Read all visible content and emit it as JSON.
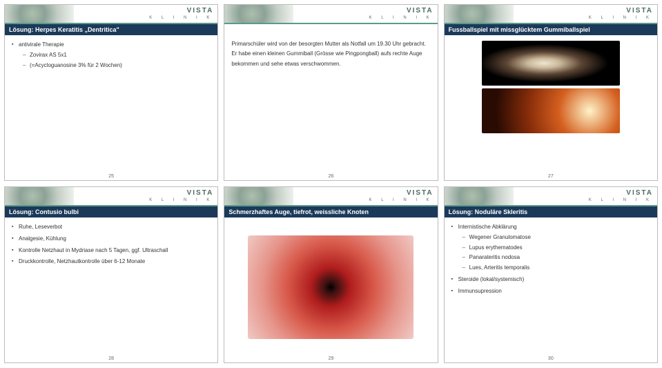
{
  "brand": {
    "main": "VISTA",
    "sub": "K L I N I K"
  },
  "slides": [
    {
      "number": "25",
      "title": "Lösung: Herpes Keratitis „Dentritica\"",
      "bullets": [
        {
          "text": "antivirale Therapie",
          "sub": [
            "Zovirax AS 5x1",
            "(=Acycloguanosine 3% für 2 Wochen)"
          ]
        }
      ]
    },
    {
      "number": "26",
      "title": "",
      "paragraph": "Primarschüler wird von der besorgten Mutter als Notfall um 19.30 Uhr gebracht. Er habe einen kleinen Gummiball (Grösse wie Pingpongball) aufs rechte Auge bekommen und sehe etwas verschwommen."
    },
    {
      "number": "27",
      "title": "Fussballspiel mit missglücktem Gummiballspiel"
    },
    {
      "number": "28",
      "title": "Lösung: Contusio bulbi",
      "bullets": [
        {
          "text": "Ruhe, Leseverbot",
          "sub": []
        },
        {
          "text": "Analgesie, Kühlung",
          "sub": []
        },
        {
          "text": "Kontrolle Netzhaut in Mydriase nach 5 Tagen, ggf. Ultraschall",
          "sub": []
        },
        {
          "text": "Druckkontrolle, Netzhautkontrolle über 6-12 Monate",
          "sub": []
        }
      ]
    },
    {
      "number": "29",
      "title": "Schmerzhaftes Auge, tiefrot, weissliche Knoten"
    },
    {
      "number": "30",
      "title": "Lösung: Noduläre Skleritis",
      "bullets": [
        {
          "text": "Internistische Abklärung",
          "sub": [
            "Wegener Granulomatose",
            "Lupus erythematodes",
            "Panarateritis nodosa",
            "Lues, Arteritis temporalis"
          ]
        },
        {
          "text": "Steroide (lokal/systemisch)",
          "sub": []
        },
        {
          "text": "Immunsupression",
          "sub": []
        }
      ]
    }
  ]
}
